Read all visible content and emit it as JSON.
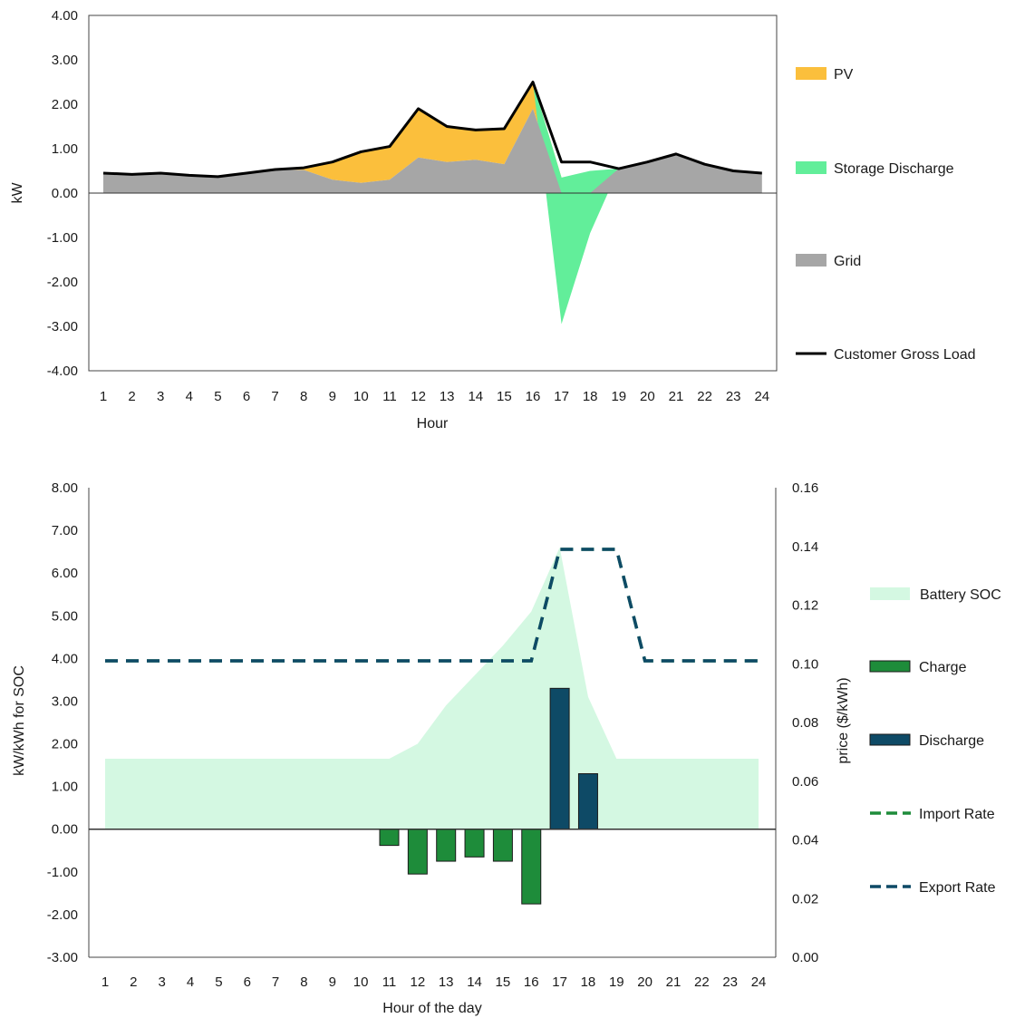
{
  "chart_data": [
    {
      "type": "area",
      "x": [
        1,
        2,
        3,
        4,
        5,
        6,
        7,
        8,
        9,
        10,
        11,
        12,
        13,
        14,
        15,
        16,
        17,
        18,
        19,
        20,
        21,
        22,
        23,
        24
      ],
      "xlabel": "Hour",
      "ylabel": "kW",
      "ylim": [
        -4,
        4
      ],
      "yticks": [
        "4.00",
        "3.00",
        "2.00",
        "1.00",
        "0.00",
        "-1.00",
        "-2.00",
        "-3.00",
        "-4.00"
      ],
      "grid": false,
      "legend_position": "right",
      "series": [
        {
          "name": "PV",
          "type": "area",
          "color": "#fbbf3c",
          "values": [
            0,
            0,
            0,
            0,
            0,
            0,
            0,
            0.05,
            0.4,
            0.7,
            0.75,
            1.1,
            0.8,
            0.67,
            0.8,
            0.6,
            0.35,
            0.2,
            0,
            0,
            0,
            0,
            0,
            0
          ]
        },
        {
          "name": "Storage Discharge",
          "type": "area",
          "color": "#62ee9a",
          "values": [
            0,
            0,
            0,
            0,
            0,
            0,
            0,
            0,
            0,
            0,
            0,
            0,
            0,
            0,
            0,
            0,
            -2.95,
            -0.9,
            0,
            0,
            0,
            0,
            0,
            0
          ]
        },
        {
          "name": "Grid",
          "type": "area",
          "color": "#a6a6a6",
          "values": [
            0.45,
            0.42,
            0.45,
            0.4,
            0.37,
            0.45,
            0.53,
            0.52,
            0.3,
            0.23,
            0.3,
            0.8,
            0.7,
            0.75,
            0.65,
            1.9,
            0,
            0,
            0.55,
            0.7,
            0.88,
            0.65,
            0.5,
            0.45
          ]
        },
        {
          "name": "Customer Gross Load",
          "type": "line",
          "color": "#000000",
          "values": [
            0.45,
            0.42,
            0.45,
            0.4,
            0.37,
            0.45,
            0.53,
            0.57,
            0.7,
            0.93,
            1.05,
            1.9,
            1.5,
            1.42,
            1.45,
            2.5,
            0.7,
            0.7,
            0.55,
            0.7,
            0.88,
            0.65,
            0.5,
            0.45
          ]
        }
      ]
    },
    {
      "type": "bar",
      "x": [
        1,
        2,
        3,
        4,
        5,
        6,
        7,
        8,
        9,
        10,
        11,
        12,
        13,
        14,
        15,
        16,
        17,
        18,
        19,
        20,
        21,
        22,
        23,
        24
      ],
      "xlabel": "Hour of the day",
      "ylabel": "kW/kWh for SOC",
      "ylabel_right": "price ($/kWh)",
      "ylim": [
        -3,
        8
      ],
      "ylim_right": [
        0,
        0.16
      ],
      "yticks": [
        "8.00",
        "7.00",
        "6.00",
        "5.00",
        "4.00",
        "3.00",
        "2.00",
        "1.00",
        "0.00",
        "-1.00",
        "-2.00",
        "-3.00"
      ],
      "yticks_right": [
        "0.16",
        "0.14",
        "0.12",
        "0.10",
        "0.08",
        "0.06",
        "0.04",
        "0.02",
        "0.00"
      ],
      "grid": false,
      "legend_position": "right",
      "series": [
        {
          "name": "Battery SOC",
          "type": "area",
          "color": "#d4f8e2",
          "values": [
            1.65,
            1.65,
            1.65,
            1.65,
            1.65,
            1.65,
            1.65,
            1.65,
            1.65,
            1.65,
            1.65,
            2.0,
            2.9,
            3.6,
            4.3,
            5.1,
            6.6,
            3.1,
            1.65,
            1.65,
            1.65,
            1.65,
            1.65,
            1.65
          ]
        },
        {
          "name": "Charge",
          "type": "bar",
          "color": "#1e8c3a",
          "values": [
            0,
            0,
            0,
            0,
            0,
            0,
            0,
            0,
            0,
            0,
            -0.38,
            -1.05,
            -0.75,
            -0.65,
            -0.75,
            -1.75,
            0,
            0,
            0,
            0,
            0,
            0,
            0,
            0
          ]
        },
        {
          "name": "Discharge",
          "type": "bar",
          "color": "#0e4a66",
          "values": [
            0,
            0,
            0,
            0,
            0,
            0,
            0,
            0,
            0,
            0,
            0,
            0,
            0,
            0,
            0,
            0,
            3.3,
            1.3,
            0,
            0,
            0,
            0,
            0,
            0
          ]
        },
        {
          "name": "Import Rate",
          "type": "line",
          "axis": "right",
          "dash": true,
          "color": "#1e8c3a",
          "values": [
            0.101,
            0.101,
            0.101,
            0.101,
            0.101,
            0.101,
            0.101,
            0.101,
            0.101,
            0.101,
            0.101,
            0.101,
            0.101,
            0.101,
            0.101,
            0.101,
            0.139,
            0.139,
            0.139,
            0.101,
            0.101,
            0.101,
            0.101,
            0.101
          ]
        },
        {
          "name": "Export Rate",
          "type": "line",
          "axis": "right",
          "dash": true,
          "color": "#0e4a66",
          "values": [
            0.101,
            0.101,
            0.101,
            0.101,
            0.101,
            0.101,
            0.101,
            0.101,
            0.101,
            0.101,
            0.101,
            0.101,
            0.101,
            0.101,
            0.101,
            0.101,
            0.139,
            0.139,
            0.139,
            0.101,
            0.101,
            0.101,
            0.101,
            0.101
          ]
        }
      ]
    }
  ]
}
